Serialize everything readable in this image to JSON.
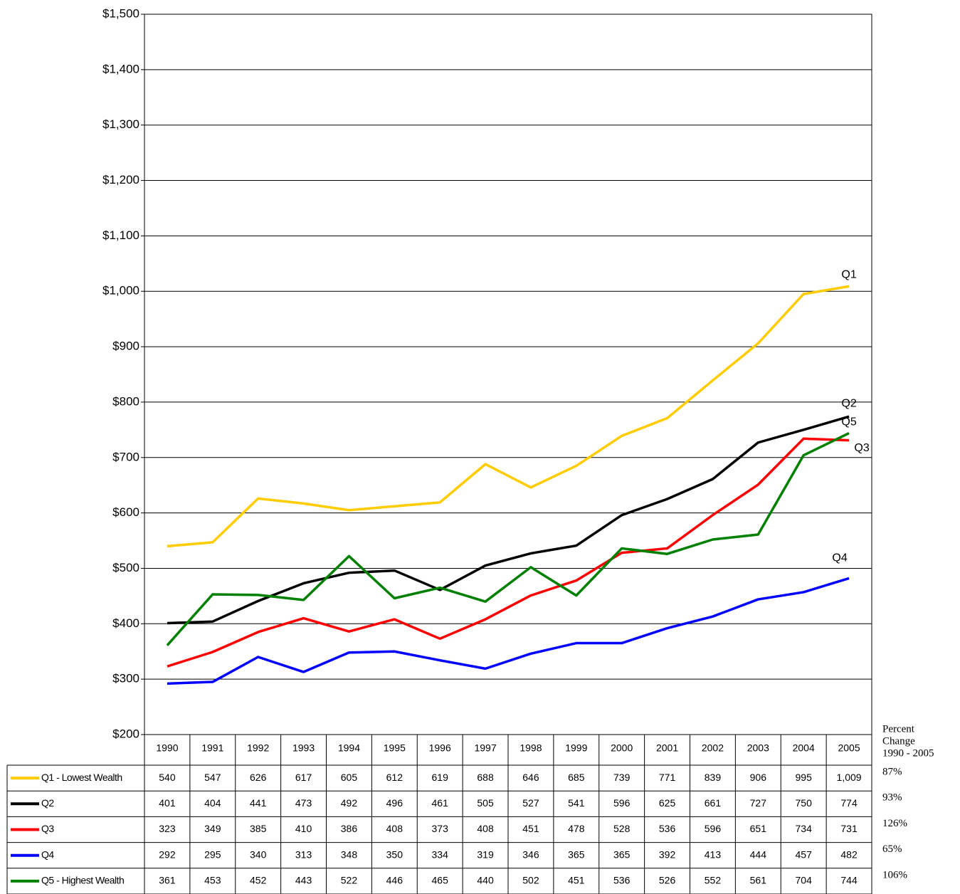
{
  "chart_data": {
    "type": "line",
    "categories": [
      "1990",
      "1991",
      "1992",
      "1993",
      "1994",
      "1995",
      "1996",
      "1997",
      "1998",
      "1999",
      "2000",
      "2001",
      "2002",
      "2003",
      "2004",
      "2005"
    ],
    "ylim": [
      200,
      1500
    ],
    "yticks": [
      {
        "value": 200,
        "label": "$200"
      },
      {
        "value": 300,
        "label": "$300"
      },
      {
        "value": 400,
        "label": "$400"
      },
      {
        "value": 500,
        "label": "$500"
      },
      {
        "value": 600,
        "label": "$600"
      },
      {
        "value": 700,
        "label": "$700"
      },
      {
        "value": 800,
        "label": "$800"
      },
      {
        "value": 900,
        "label": "$900"
      },
      {
        "value": 1000,
        "label": "$1,000"
      },
      {
        "value": 1100,
        "label": "$1,100"
      },
      {
        "value": 1200,
        "label": "$1,200"
      },
      {
        "value": 1300,
        "label": "$1,300"
      },
      {
        "value": 1400,
        "label": "$1,400"
      },
      {
        "value": 1500,
        "label": "$1,500"
      }
    ],
    "grid": true,
    "percent_change_header": [
      "Percent",
      "Change",
      "1990 - 2005"
    ],
    "series": [
      {
        "name": "Q1 - Lowest Wealth",
        "end_label": "Q1",
        "color": "#ffcc00",
        "percent_change": "87%",
        "values": [
          540,
          547,
          626,
          617,
          605,
          612,
          619,
          688,
          646,
          685,
          739,
          771,
          839,
          906,
          995,
          1009
        ],
        "value_labels": [
          "540",
          "547",
          "626",
          "617",
          "605",
          "612",
          "619",
          "688",
          "646",
          "685",
          "739",
          "771",
          "839",
          "906",
          "995",
          "1,009"
        ]
      },
      {
        "name": "Q2",
        "end_label": "Q2",
        "color": "#000000",
        "percent_change": "93%",
        "values": [
          401,
          404,
          441,
          473,
          492,
          496,
          461,
          505,
          527,
          541,
          596,
          625,
          661,
          727,
          750,
          774
        ]
      },
      {
        "name": "Q3",
        "end_label": "Q3",
        "color": "#ff0000",
        "percent_change": "126%",
        "values": [
          323,
          349,
          385,
          410,
          386,
          408,
          373,
          408,
          451,
          478,
          528,
          536,
          596,
          651,
          734,
          731
        ]
      },
      {
        "name": "Q4",
        "end_label": "Q4",
        "color": "#0000ff",
        "percent_change": "65%",
        "values": [
          292,
          295,
          340,
          313,
          348,
          350,
          334,
          319,
          346,
          365,
          365,
          392,
          413,
          444,
          457,
          482
        ]
      },
      {
        "name": "Q5 - Highest Wealth",
        "end_label": "Q5",
        "color": "#008000",
        "percent_change": "106%",
        "values": [
          361,
          453,
          452,
          443,
          522,
          446,
          465,
          440,
          502,
          451,
          536,
          526,
          552,
          561,
          704,
          744
        ]
      }
    ]
  }
}
